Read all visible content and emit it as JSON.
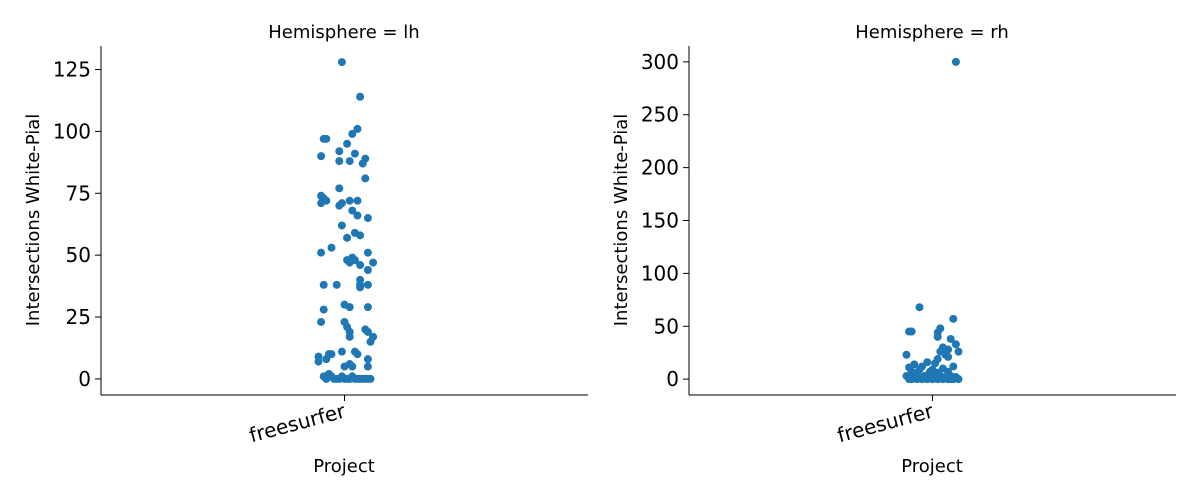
{
  "chart_data": [
    {
      "type": "scatter",
      "title": "Hemisphere = lh",
      "xlabel": "Project",
      "ylabel": "Intersections White-Pial",
      "categories": [
        "freesurfer"
      ],
      "yticks": [
        0,
        25,
        50,
        75,
        100,
        125
      ],
      "ylim": [
        -6.5,
        134.5
      ],
      "point_color": "#1f77b4",
      "series": [
        {
          "category": "freesurfer",
          "points": [
            [
              -0.01,
              128
            ],
            [
              0.06,
              114
            ],
            [
              0.05,
              101
            ],
            [
              0.03,
              99
            ],
            [
              -0.08,
              97
            ],
            [
              -0.07,
              97
            ],
            [
              0.01,
              95
            ],
            [
              -0.02,
              92
            ],
            [
              0.04,
              91
            ],
            [
              -0.09,
              90
            ],
            [
              0.08,
              89
            ],
            [
              -0.02,
              88
            ],
            [
              0.02,
              88
            ],
            [
              0.07,
              87
            ],
            [
              0.08,
              81
            ],
            [
              -0.02,
              77
            ],
            [
              -0.09,
              74
            ],
            [
              -0.08,
              73
            ],
            [
              -0.07,
              72
            ],
            [
              0.02,
              72
            ],
            [
              0.05,
              72
            ],
            [
              -0.09,
              71
            ],
            [
              -0.01,
              71
            ],
            [
              -0.02,
              70
            ],
            [
              0.03,
              68
            ],
            [
              0.05,
              66
            ],
            [
              0.09,
              65
            ],
            [
              -0.01,
              62
            ],
            [
              0.06,
              58
            ],
            [
              0.04,
              59
            ],
            [
              0.01,
              57
            ],
            [
              -0.05,
              53
            ],
            [
              -0.09,
              51
            ],
            [
              0.09,
              51
            ],
            [
              0.03,
              49
            ],
            [
              0.04,
              48
            ],
            [
              0.01,
              48
            ],
            [
              0.02,
              47
            ],
            [
              0.11,
              47
            ],
            [
              0.06,
              46
            ],
            [
              0.09,
              44
            ],
            [
              0.06,
              40
            ],
            [
              0.06,
              38
            ],
            [
              -0.08,
              38
            ],
            [
              -0.03,
              38
            ],
            [
              0.09,
              38
            ],
            [
              0.06,
              37
            ],
            [
              0.0,
              30
            ],
            [
              0.02,
              29
            ],
            [
              -0.08,
              28
            ],
            [
              0.09,
              29
            ],
            [
              0.0,
              23
            ],
            [
              -0.09,
              23
            ],
            [
              0.01,
              21
            ],
            [
              0.02,
              19
            ],
            [
              0.08,
              20
            ],
            [
              0.09,
              19
            ],
            [
              0.02,
              17
            ],
            [
              0.11,
              17
            ],
            [
              0.1,
              15
            ],
            [
              -0.01,
              11
            ],
            [
              0.04,
              11
            ],
            [
              -0.1,
              9
            ],
            [
              -0.06,
              10
            ],
            [
              -0.05,
              10
            ],
            [
              0.05,
              10
            ],
            [
              -0.07,
              8
            ],
            [
              0.09,
              8
            ],
            [
              -0.1,
              7
            ],
            [
              0.02,
              6
            ],
            [
              0.0,
              5
            ],
            [
              0.09,
              5
            ],
            [
              0.03,
              5
            ],
            [
              -0.08,
              1
            ],
            [
              -0.06,
              2
            ],
            [
              -0.05,
              1
            ],
            [
              -0.04,
              0
            ],
            [
              -0.02,
              0
            ],
            [
              -0.01,
              1
            ],
            [
              0.0,
              0
            ],
            [
              0.01,
              0
            ],
            [
              0.02,
              0
            ],
            [
              0.03,
              1
            ],
            [
              0.04,
              0
            ],
            [
              0.05,
              0
            ],
            [
              0.06,
              0
            ],
            [
              0.07,
              0
            ],
            [
              0.08,
              0
            ],
            [
              0.09,
              0
            ],
            [
              0.1,
              0
            ],
            [
              -0.07,
              0
            ],
            [
              -0.03,
              0
            ]
          ]
        }
      ]
    },
    {
      "type": "scatter",
      "title": "Hemisphere = rh",
      "xlabel": "Project",
      "ylabel": "Intersections White-Pial",
      "categories": [
        "freesurfer"
      ],
      "yticks": [
        0,
        50,
        100,
        150,
        200,
        250,
        300
      ],
      "ylim": [
        -15,
        315
      ],
      "point_color": "#1f77b4",
      "series": [
        {
          "category": "freesurfer",
          "points": [
            [
              0.09,
              300
            ],
            [
              -0.05,
              68
            ],
            [
              0.08,
              57
            ],
            [
              0.03,
              48
            ],
            [
              -0.09,
              45
            ],
            [
              -0.08,
              45
            ],
            [
              0.02,
              44
            ],
            [
              0.02,
              40
            ],
            [
              0.07,
              38
            ],
            [
              0.09,
              33
            ],
            [
              0.04,
              30
            ],
            [
              0.06,
              28
            ],
            [
              0.03,
              26
            ],
            [
              0.1,
              26
            ],
            [
              -0.1,
              23
            ],
            [
              0.05,
              23
            ],
            [
              0.06,
              21
            ],
            [
              0.02,
              19
            ],
            [
              -0.02,
              16
            ],
            [
              0.01,
              15
            ],
            [
              -0.07,
              14
            ],
            [
              -0.04,
              12
            ],
            [
              -0.09,
              11
            ],
            [
              0.08,
              12
            ],
            [
              -0.05,
              9
            ],
            [
              0.0,
              9
            ],
            [
              0.04,
              10
            ],
            [
              -0.08,
              7
            ],
            [
              -0.06,
              6
            ],
            [
              -0.01,
              7
            ],
            [
              0.02,
              6
            ],
            [
              0.06,
              7
            ],
            [
              -0.1,
              3
            ],
            [
              -0.07,
              4
            ],
            [
              -0.05,
              2
            ],
            [
              -0.03,
              3
            ],
            [
              -0.01,
              2
            ],
            [
              0.0,
              4
            ],
            [
              0.01,
              2
            ],
            [
              0.03,
              3
            ],
            [
              0.05,
              2
            ],
            [
              0.07,
              3
            ],
            [
              0.09,
              2
            ],
            [
              -0.09,
              0
            ],
            [
              -0.08,
              0
            ],
            [
              -0.06,
              0
            ],
            [
              -0.04,
              0
            ],
            [
              -0.02,
              0
            ],
            [
              0.0,
              0
            ],
            [
              0.02,
              0
            ],
            [
              0.04,
              0
            ],
            [
              0.06,
              0
            ],
            [
              0.08,
              0
            ],
            [
              0.1,
              0
            ],
            [
              -0.03,
              1
            ],
            [
              0.03,
              1
            ],
            [
              0.07,
              0
            ],
            [
              -0.07,
              1
            ]
          ]
        }
      ]
    }
  ]
}
